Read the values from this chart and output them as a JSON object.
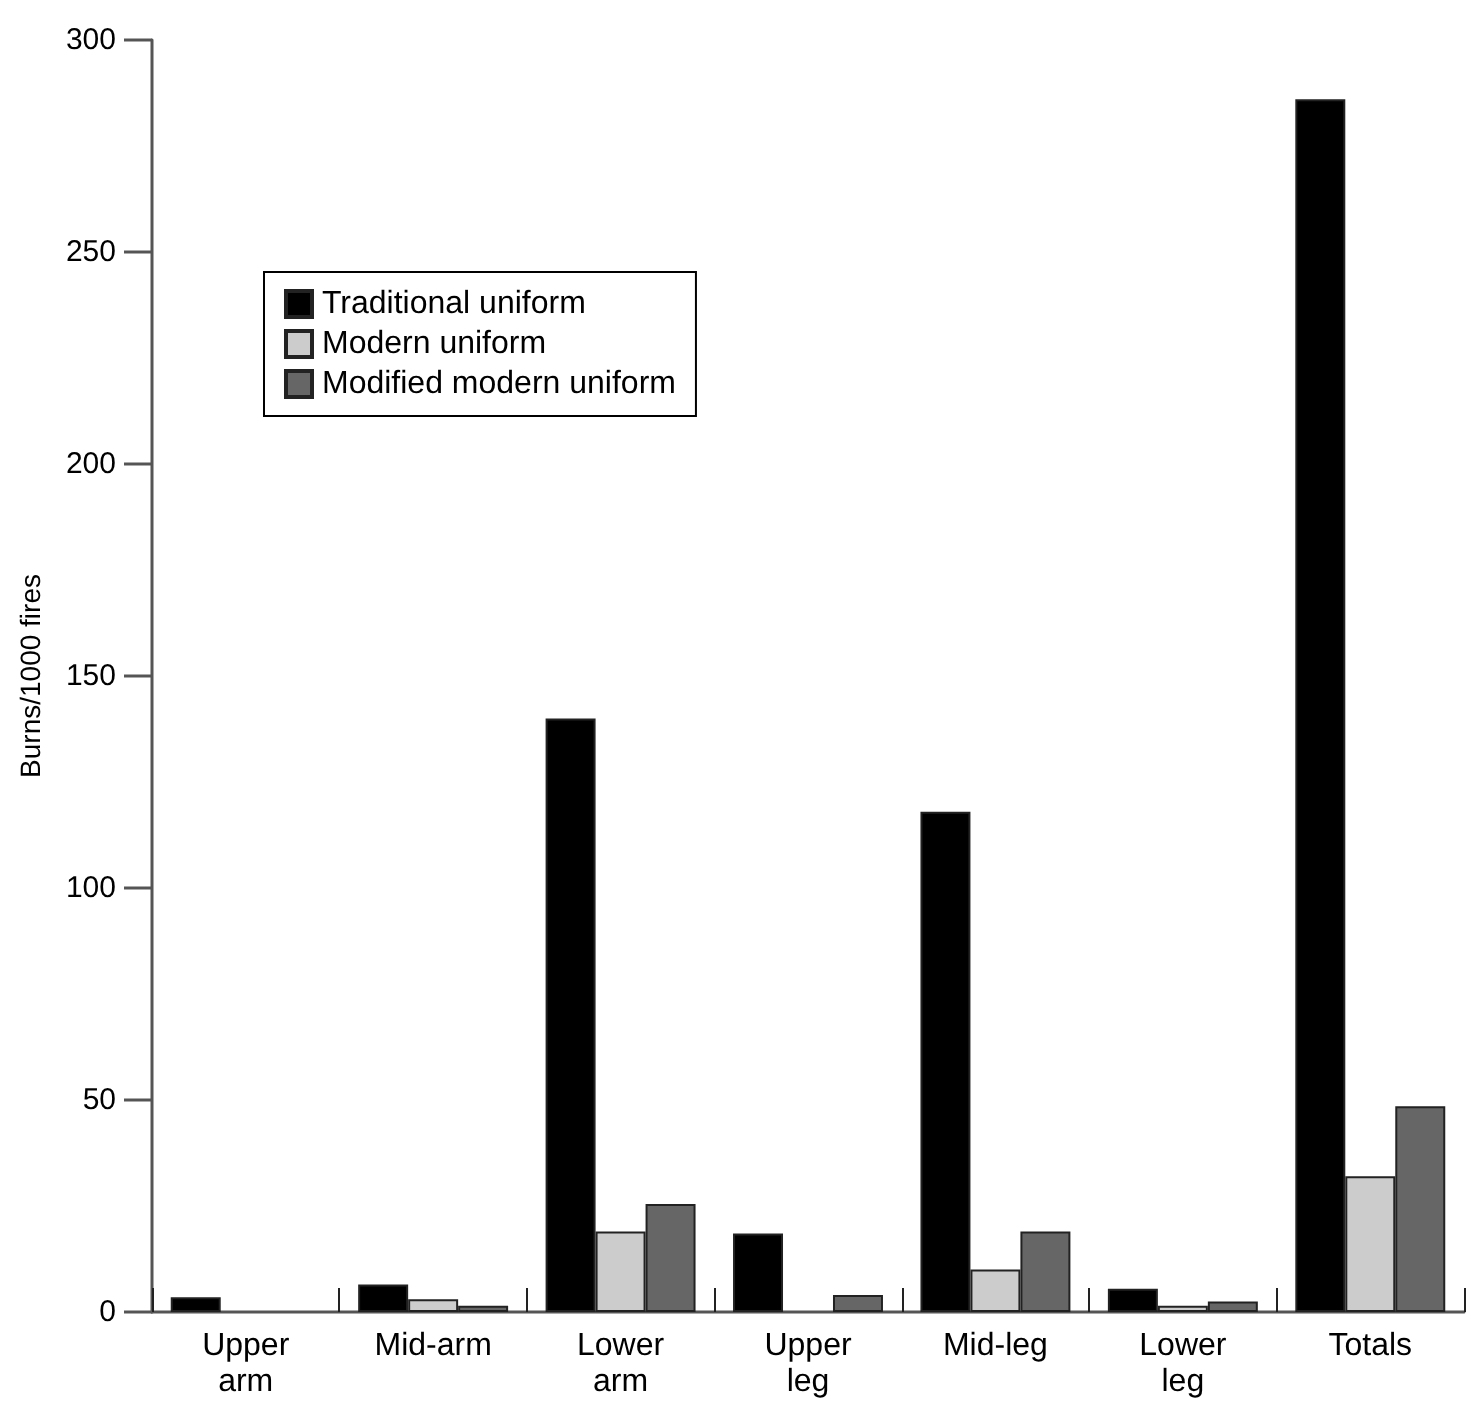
{
  "chart_data": {
    "type": "bar",
    "ylabel": "Burns/1000 fires",
    "categories": [
      "Upper\narm",
      "Mid-arm",
      "Lower\narm",
      "Upper\nleg",
      "Mid-leg",
      "Lower\nleg",
      "Totals"
    ],
    "series": [
      {
        "name": "Traditional uniform",
        "color": "#000000",
        "values": [
          3.5,
          6.5,
          140,
          18.5,
          118,
          5.5,
          286
        ]
      },
      {
        "name": "Modern uniform",
        "color": "#cccccc",
        "values": [
          0,
          3,
          19,
          0,
          10,
          1.5,
          32
        ]
      },
      {
        "name": "Modified modern uniform",
        "color": "#666666",
        "values": [
          0,
          1.5,
          25.5,
          4,
          19,
          2.5,
          48.5
        ]
      }
    ],
    "ylim": [
      0,
      300
    ],
    "yticks": [
      0,
      50,
      100,
      150,
      200,
      250,
      300
    ],
    "grid": false,
    "legend": "top left"
  }
}
